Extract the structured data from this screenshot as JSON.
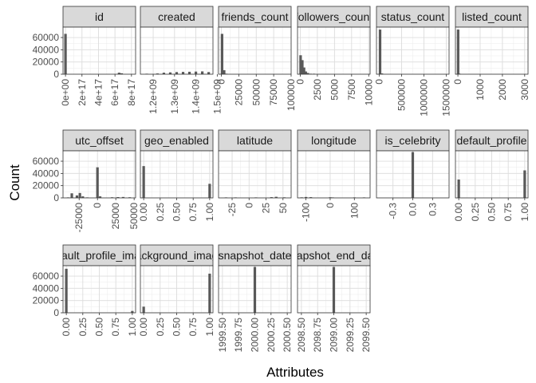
{
  "chart_data": {
    "type": "bar",
    "layout": "facet-wrap histograms, 6 columns x 3 rows, independent x scales",
    "xlabel": "Attributes",
    "ylabel": "Count",
    "y_ticks": [
      "0",
      "20000",
      "40000",
      "60000"
    ],
    "y_tick_values": [
      0,
      20000,
      40000,
      60000
    ],
    "ylim": [
      0,
      77000
    ],
    "grid": true,
    "bar_color": "#595959",
    "strip_color": "#d9d9d9",
    "panels": [
      {
        "name": "id",
        "xlim": [
          -3e+16,
          8.5e+17
        ],
        "x_ticks": [
          "0e+00",
          "2e+17",
          "4e+17",
          "6e+17",
          "8e+17"
        ],
        "x_tick_values": [
          0,
          2e+17,
          4e+17,
          6e+17,
          8e+17
        ],
        "bars": [
          {
            "x": 0,
            "y": 66000
          },
          {
            "x": 6.5e+17,
            "y": 2500
          },
          {
            "x": 6.8e+17,
            "y": 1500
          }
        ]
      },
      {
        "name": "created",
        "xlim": [
          1140000000.0,
          1480000000.0
        ],
        "x_ticks": [
          "1.2e+09",
          "1.3e+09",
          "1.4e+09",
          "1.5e+09"
        ],
        "x_tick_values": [
          1200000000.0,
          1300000000.0,
          1400000000.0,
          1500000000.0
        ],
        "bars": [
          {
            "x": 1170000000.0,
            "y": 400
          },
          {
            "x": 1220000000.0,
            "y": 1200
          },
          {
            "x": 1250000000.0,
            "y": 2500
          },
          {
            "x": 1280000000.0,
            "y": 3000
          },
          {
            "x": 1310000000.0,
            "y": 3500
          },
          {
            "x": 1340000000.0,
            "y": 3800
          },
          {
            "x": 1370000000.0,
            "y": 4000
          },
          {
            "x": 1400000000.0,
            "y": 4300
          },
          {
            "x": 1430000000.0,
            "y": 4600
          },
          {
            "x": 1460000000.0,
            "y": 3500
          }
        ]
      },
      {
        "name": "friends_count",
        "xlim": [
          -4000,
          100000
        ],
        "x_ticks": [
          "0",
          "25000",
          "50000",
          "75000",
          "100000"
        ],
        "x_tick_values": [
          0,
          25000,
          50000,
          75000,
          100000
        ],
        "bars": [
          {
            "x": 1000,
            "y": 66000
          },
          {
            "x": 4000,
            "y": 6500
          },
          {
            "x": 7000,
            "y": 500
          }
        ]
      },
      {
        "name": "followers_count",
        "xlim": [
          -400,
          10200
        ],
        "x_ticks": [
          "0",
          "2500",
          "5000",
          "7500",
          "10000"
        ],
        "x_tick_values": [
          0,
          2500,
          5000,
          7500,
          10000
        ],
        "bars": [
          {
            "x": 50,
            "y": 31000
          },
          {
            "x": 300,
            "y": 23000
          },
          {
            "x": 550,
            "y": 11000
          },
          {
            "x": 800,
            "y": 4500
          },
          {
            "x": 1100,
            "y": 2000
          },
          {
            "x": 1500,
            "y": 800
          },
          {
            "x": 2000,
            "y": 400
          }
        ]
      },
      {
        "name": "status_count",
        "xlim": [
          -60000,
          1560000
        ],
        "x_ticks": [
          "0",
          "500000",
          "1000000",
          "1500000"
        ],
        "x_tick_values": [
          0,
          500000,
          1000000,
          1500000
        ],
        "bars": [
          {
            "x": 20000,
            "y": 73000
          },
          {
            "x": 60000,
            "y": 1200
          }
        ]
      },
      {
        "name": "listed_count",
        "xlim": [
          -110,
          3150
        ],
        "x_ticks": [
          "0",
          "1000",
          "2000",
          "3000"
        ],
        "x_tick_values": [
          0,
          1000,
          2000,
          3000
        ],
        "bars": [
          {
            "x": 10,
            "y": 73000
          },
          {
            "x": 60,
            "y": 1000
          }
        ]
      },
      {
        "name": "utc_offset",
        "xlim": [
          -47000,
          52000
        ],
        "x_ticks": [
          "-25000",
          "0",
          "25000",
          "50000"
        ],
        "x_tick_values": [
          -25000,
          0,
          25000,
          50000
        ],
        "bars": [
          {
            "x": -40000,
            "y": 300
          },
          {
            "x": -35000,
            "y": 7500
          },
          {
            "x": -28000,
            "y": 4000
          },
          {
            "x": -24000,
            "y": 8000
          },
          {
            "x": -20000,
            "y": 2500
          },
          {
            "x": -14000,
            "y": 700
          },
          {
            "x": 0,
            "y": 50000
          },
          {
            "x": 3600,
            "y": 2500
          },
          {
            "x": 20000,
            "y": 1000
          },
          {
            "x": 28000,
            "y": 1300
          },
          {
            "x": 35000,
            "y": 1500
          },
          {
            "x": 44000,
            "y": 1000
          }
        ]
      },
      {
        "name": "geo_enabled",
        "xlim": [
          -0.05,
          1.05
        ],
        "x_ticks": [
          "0.00",
          "0.25",
          "0.50",
          "0.75",
          "1.00"
        ],
        "x_tick_values": [
          0,
          0.25,
          0.5,
          0.75,
          1
        ],
        "bars": [
          {
            "x": 0,
            "y": 52000
          },
          {
            "x": 1,
            "y": 23000
          }
        ]
      },
      {
        "name": "latitude",
        "xlim": [
          -45,
          62
        ],
        "x_ticks": [
          "-25",
          "0",
          "25",
          "50"
        ],
        "x_tick_values": [
          -25,
          0,
          25,
          50
        ],
        "bars": [
          {
            "x": -34,
            "y": 200
          },
          {
            "x": -20,
            "y": 150
          },
          {
            "x": 10,
            "y": 300
          },
          {
            "x": 33,
            "y": 1200
          },
          {
            "x": 40,
            "y": 1800
          },
          {
            "x": 52,
            "y": 900
          }
        ]
      },
      {
        "name": "longitude",
        "xlim": [
          -135,
          165
        ],
        "x_ticks": [
          "-100",
          "0",
          "100"
        ],
        "x_tick_values": [
          -100,
          0,
          100
        ],
        "bars": [
          {
            "x": -118,
            "y": 900
          },
          {
            "x": -100,
            "y": 1500
          },
          {
            "x": -80,
            "y": 1200
          },
          {
            "x": 0,
            "y": 1000
          },
          {
            "x": 10,
            "y": 400
          },
          {
            "x": 100,
            "y": 200
          },
          {
            "x": 140,
            "y": 300
          }
        ]
      },
      {
        "name": "is_celebrity",
        "xlim": [
          -0.55,
          0.55
        ],
        "x_ticks": [
          "-0.3",
          "0.0",
          "0.3"
        ],
        "x_tick_values": [
          -0.3,
          0,
          0.3
        ],
        "bars": [
          {
            "x": 0,
            "y": 75000
          }
        ]
      },
      {
        "name": "default_profile",
        "xlim": [
          -0.05,
          1.05
        ],
        "x_ticks": [
          "0.00",
          "0.25",
          "0.50",
          "0.75",
          "1.00"
        ],
        "x_tick_values": [
          0,
          0.25,
          0.5,
          0.75,
          1
        ],
        "bars": [
          {
            "x": 0,
            "y": 30000
          },
          {
            "x": 1,
            "y": 45000
          }
        ]
      },
      {
        "name": "default_profile_image",
        "xlim": [
          -0.05,
          1.05
        ],
        "x_ticks": [
          "0.00",
          "0.25",
          "0.50",
          "0.75",
          "1.00"
        ],
        "x_tick_values": [
          0,
          0.25,
          0.5,
          0.75,
          1
        ],
        "bars": [
          {
            "x": 0,
            "y": 72000
          },
          {
            "x": 1,
            "y": 3000
          }
        ]
      },
      {
        "name": "background_image",
        "xlim": [
          -0.05,
          1.05
        ],
        "x_ticks": [
          "0.00",
          "0.25",
          "0.50",
          "0.75",
          "1.00"
        ],
        "x_tick_values": [
          0,
          0.25,
          0.5,
          0.75,
          1
        ],
        "bars": [
          {
            "x": 0,
            "y": 10000
          },
          {
            "x": 1,
            "y": 64000
          }
        ]
      },
      {
        "name": "snapshot_date",
        "xlim": [
          1999.44,
          2000.56
        ],
        "x_ticks": [
          "1999.50",
          "1999.75",
          "2000.00",
          "2000.25",
          "2000.50"
        ],
        "x_tick_values": [
          1999.5,
          1999.75,
          2000,
          2000.25,
          2000.5
        ],
        "bars": [
          {
            "x": 2000,
            "y": 75000
          }
        ]
      },
      {
        "name": "snapshot_end_date",
        "xlim": [
          2098.44,
          2099.56
        ],
        "x_ticks": [
          "2098.50",
          "2098.75",
          "2099.00",
          "2099.25",
          "2099.50"
        ],
        "x_tick_values": [
          2098.5,
          2098.75,
          2099,
          2099.25,
          2099.5
        ],
        "bars": [
          {
            "x": 2099,
            "y": 75000
          }
        ]
      }
    ]
  }
}
